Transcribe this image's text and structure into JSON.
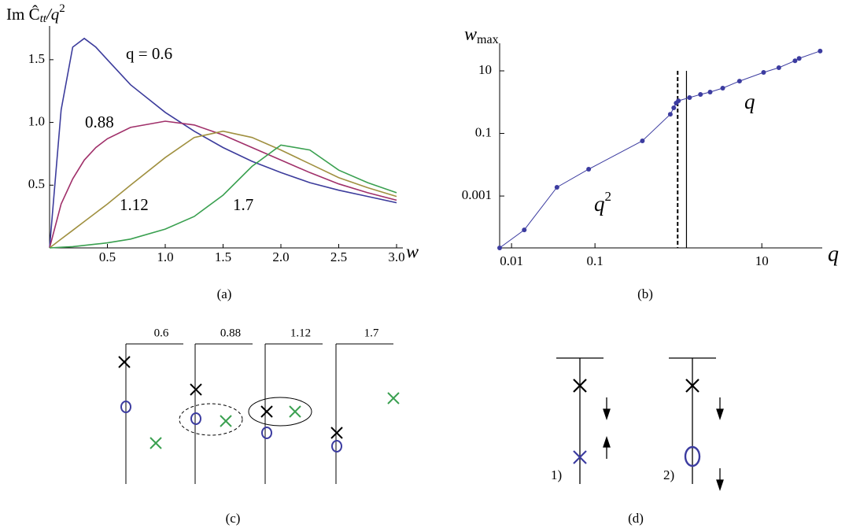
{
  "chart_data": [
    {
      "type": "line",
      "caption": "(a)",
      "y_label": [
        "Im Ĉ",
        "tt",
        "/q",
        "2"
      ],
      "x_label": "w",
      "x": [
        0,
        0.1,
        0.2,
        0.3,
        0.4,
        0.5,
        0.7,
        1.0,
        1.25,
        1.5,
        1.75,
        2.0,
        2.25,
        2.5,
        2.75,
        3.0
      ],
      "series": [
        {
          "name": "0.6",
          "color": "#3c3c9c",
          "values": [
            0,
            1.1,
            1.6,
            1.67,
            1.6,
            1.5,
            1.3,
            1.08,
            0.93,
            0.8,
            0.69,
            0.6,
            0.52,
            0.46,
            0.41,
            0.36
          ]
        },
        {
          "name": "0.88",
          "color": "#a0306a",
          "values": [
            0,
            0.35,
            0.55,
            0.7,
            0.8,
            0.87,
            0.96,
            1.01,
            0.98,
            0.9,
            0.8,
            0.7,
            0.6,
            0.51,
            0.44,
            0.38
          ]
        },
        {
          "name": "1.12",
          "color": "#a09040",
          "values": [
            0,
            0.07,
            0.14,
            0.21,
            0.28,
            0.35,
            0.5,
            0.72,
            0.88,
            0.93,
            0.88,
            0.78,
            0.67,
            0.56,
            0.48,
            0.41
          ]
        },
        {
          "name": "1.7",
          "color": "#3aa050",
          "values": [
            0,
            0.005,
            0.01,
            0.02,
            0.03,
            0.04,
            0.07,
            0.15,
            0.25,
            0.42,
            0.65,
            0.82,
            0.78,
            0.62,
            0.52,
            0.44
          ]
        }
      ],
      "annotations": [
        "q = 0.6",
        "0.88",
        "1.12",
        "1.7"
      ],
      "xlim": [
        0,
        3.0
      ],
      "ylim": [
        0,
        1.75
      ],
      "xticks": [
        0.5,
        {
          "value": 1,
          "label": "1.0"
        },
        1.5,
        {
          "value": 2,
          "label": "2.0"
        },
        2.5,
        {
          "value": 3,
          "label": "3.0"
        }
      ],
      "yticks": [
        0.5,
        {
          "value": 1,
          "label": "1.0"
        },
        1.5
      ]
    },
    {
      "type": "scatter",
      "caption": "(b)",
      "y_label": [
        "w",
        "max"
      ],
      "x_label": "q",
      "log_x": true,
      "log_y": true,
      "color": "#3c3ca0",
      "x": [
        0.0072,
        0.0142,
        0.035,
        0.084,
        0.37,
        0.8,
        0.88,
        0.94,
        1.0,
        1.36,
        1.84,
        2.4,
        3.4,
        5.4,
        10.5,
        16,
        25,
        28,
        50
      ],
      "values": [
        2.2e-05,
        8.3e-05,
        0.0019,
        0.0072,
        0.058,
        0.41,
        0.66,
        0.93,
        1.1,
        1.4,
        1.76,
        2.1,
        2.8,
        4.7,
        8.9,
        12.6,
        21,
        25,
        43
      ],
      "vlines": [
        {
          "x": 0.98,
          "style": "dashed"
        },
        {
          "x": 1.25,
          "style": "solid"
        }
      ],
      "annotations": [
        [
          "q",
          "2"
        ],
        [
          "q"
        ]
      ],
      "xlim": [
        0.0072,
        53
      ],
      "ylim": [
        2.2e-05,
        76
      ],
      "xticks": [
        0.01,
        0.1,
        10
      ],
      "yticks": [
        0.001,
        0.1,
        10
      ]
    }
  ],
  "panel_c": {
    "caption": "(c)",
    "labels": [
      "0.6",
      "0.88",
      "1.12",
      "1.7"
    ]
  },
  "panel_d": {
    "caption": "(d)",
    "labels": [
      "1)",
      "2)"
    ]
  }
}
